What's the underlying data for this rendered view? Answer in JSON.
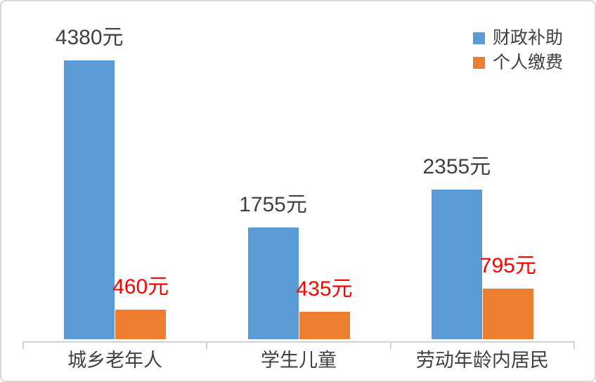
{
  "frame": {
    "background": "#ffffff",
    "border_color": "#d9d9d9"
  },
  "chart_data": {
    "type": "bar",
    "categories": [
      "城乡老年人",
      "学生儿童",
      "劳动年龄内居民"
    ],
    "series": [
      {
        "name": "财政补助",
        "color": "#5B9BD5",
        "label_color": "#404040",
        "values": [
          4380,
          1755,
          2355
        ]
      },
      {
        "name": "个人缴费",
        "color": "#ED7D31",
        "label_color": "#FF0000",
        "values": [
          460,
          435,
          795
        ]
      }
    ],
    "value_suffix": "元",
    "data_labels": {
      "series_0": [
        "4380元",
        "1755元",
        "2355元"
      ],
      "series_1": [
        "460元",
        "435元",
        "795元"
      ]
    },
    "title": "",
    "xlabel": "",
    "ylabel": "",
    "ylim": [
      0,
      5245
    ],
    "grid": false,
    "y_axis_visible": false,
    "legend_position": "top-right",
    "axis_color": "#d2d2d2",
    "text_color": "#404040"
  }
}
